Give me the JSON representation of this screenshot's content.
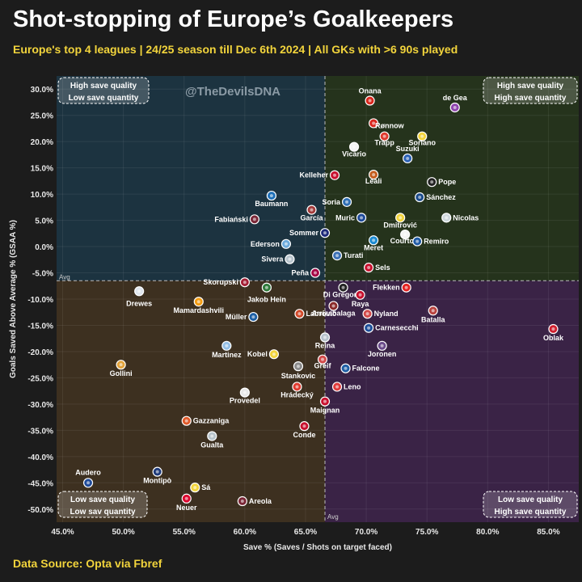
{
  "title": "Shot-stopping of Europe’s Goalkeepers",
  "subtitle": "Europe's top 4 leagues | 24/25 season till Dec 6th 2024 | All GKs with >6 90s played",
  "source": "Data Source: Opta via Fbref",
  "watermark": "@TheDevilsDNA",
  "colors": {
    "background": "#1c1c1c",
    "q_top_left": "#1c3340",
    "q_top_right": "#25331c",
    "q_bottom_left": "#3d3020",
    "q_bottom_right": "#3a2346",
    "accent_yellow": "#f2d43c"
  },
  "chart_data": {
    "type": "scatter",
    "xlabel": "Save % (Saves / Shots on target faced)",
    "ylabel": "Goals Saved Above Average % (GSAA %)",
    "xlim": [
      44.5,
      87.5
    ],
    "ylim": [
      -52.5,
      32.5
    ],
    "x_ticks": [
      "45.0%",
      "50.0%",
      "55.0%",
      "60.0%",
      "65.0%",
      "70.0%",
      "75.0%",
      "80.0%",
      "85.0%"
    ],
    "y_ticks": [
      "30.0%",
      "25.0%",
      "20.0%",
      "15.0%",
      "10.0%",
      "5.0%",
      "0.0%",
      "-5.0%",
      "-10.0%",
      "-15.0%",
      "-20.0%",
      "-25.0%",
      "-30.0%",
      "-35.0%",
      "-40.0%",
      "-45.0%",
      "-50.0%"
    ],
    "x_tick_values": [
      45,
      50,
      55,
      60,
      65,
      70,
      75,
      80,
      85
    ],
    "y_tick_values": [
      30,
      25,
      20,
      15,
      10,
      5,
      0,
      -5,
      -10,
      -15,
      -20,
      -25,
      -30,
      -35,
      -40,
      -45,
      -50
    ],
    "avg_x": 66.6,
    "avg_y": -6.5,
    "avg_label": "Avg",
    "grid": true,
    "quadrants": {
      "top_left": [
        "High save quality",
        "Low save quantity"
      ],
      "top_right": [
        "High save quality",
        "High save quantity"
      ],
      "bottom_left": [
        "Low save quality",
        "Low sav quantity"
      ],
      "bottom_right": [
        "Low save quality",
        "High save quantity"
      ]
    },
    "points": [
      {
        "name": "Onana",
        "x": 70.3,
        "y": 27.8,
        "color": "#d9261c",
        "lx": 0,
        "ly": -9,
        "a": "middle"
      },
      {
        "name": "de Gea",
        "x": 77.3,
        "y": 26.5,
        "color": "#8e44ad",
        "lx": 0,
        "ly": -9,
        "a": "middle"
      },
      {
        "name": "Rønnow",
        "x": 70.6,
        "y": 23.5,
        "color": "#d9261c",
        "lx": 2,
        "ly": 6,
        "a": "start"
      },
      {
        "name": "Trapp",
        "x": 71.5,
        "y": 21,
        "color": "#e03a2e",
        "lx": 0,
        "ly": 11,
        "a": "middle"
      },
      {
        "name": "Soriano",
        "x": 74.6,
        "y": 21,
        "color": "#f2d43c",
        "lx": 0,
        "ly": 11,
        "a": "middle"
      },
      {
        "name": "Vicario",
        "x": 69,
        "y": 19,
        "color": "#f4f4f4",
        "lx": 0,
        "ly": 12,
        "a": "middle"
      },
      {
        "name": "Suzuki",
        "x": 73.4,
        "y": 16.8,
        "color": "#2c62b5",
        "lx": 0,
        "ly": -9,
        "a": "middle"
      },
      {
        "name": "Kelleher",
        "x": 67.4,
        "y": 13.6,
        "color": "#c8102e",
        "lx": -8,
        "ly": 3,
        "a": "end"
      },
      {
        "name": "Leali",
        "x": 70.6,
        "y": 13.7,
        "color": "#c45c1c",
        "lx": 0,
        "ly": 11,
        "a": "middle"
      },
      {
        "name": "Pope",
        "x": 75.4,
        "y": 12.3,
        "color": "#222222",
        "lx": 8,
        "ly": 3,
        "a": "start"
      },
      {
        "name": "Sánchez",
        "x": 74.4,
        "y": 9.4,
        "color": "#1a4a8a",
        "lx": 8,
        "ly": 3,
        "a": "start"
      },
      {
        "name": "Baumann",
        "x": 62.2,
        "y": 9.7,
        "color": "#1d6fb8",
        "lx": 0,
        "ly": 13,
        "a": "middle"
      },
      {
        "name": "Soria",
        "x": 68.4,
        "y": 8.5,
        "color": "#2f6fb5",
        "lx": -8,
        "ly": 3,
        "a": "end"
      },
      {
        "name": "Muric",
        "x": 69.6,
        "y": 5.5,
        "color": "#1e4a9a",
        "lx": -8,
        "ly": 3,
        "a": "end"
      },
      {
        "name": "Fabiański",
        "x": 60.8,
        "y": 5.2,
        "color": "#7a2636",
        "lx": -8,
        "ly": 3,
        "a": "end"
      },
      {
        "name": "García",
        "x": 65.5,
        "y": 7,
        "color": "#a33b3b",
        "lx": 0,
        "ly": 13,
        "a": "middle"
      },
      {
        "name": "Dmitrović",
        "x": 72.8,
        "y": 5.5,
        "color": "#f2d43c",
        "lx": 0,
        "ly": 12,
        "a": "middle"
      },
      {
        "name": "Nicolas",
        "x": 76.6,
        "y": 5.5,
        "color": "#cfd8de",
        "lx": 8,
        "ly": 3,
        "a": "start"
      },
      {
        "name": "Sommer",
        "x": 66.6,
        "y": 2.6,
        "color": "#1e2a7a",
        "lx": -8,
        "ly": 3,
        "a": "end"
      },
      {
        "name": "Courtois",
        "x": 73.2,
        "y": 2.3,
        "color": "#f4f4f4",
        "lx": 0,
        "ly": 11,
        "a": "middle"
      },
      {
        "name": "Remiro",
        "x": 74.2,
        "y": 1,
        "color": "#1f5aa5",
        "lx": 8,
        "ly": 3,
        "a": "start"
      },
      {
        "name": "Ederson",
        "x": 63.4,
        "y": 0.5,
        "color": "#6cabdd",
        "lx": -8,
        "ly": 3,
        "a": "end"
      },
      {
        "name": "Meret",
        "x": 70.6,
        "y": 1.2,
        "color": "#1b8ad1",
        "lx": 0,
        "ly": 12,
        "a": "middle"
      },
      {
        "name": "Turati",
        "x": 67.6,
        "y": -1.7,
        "color": "#3a6fb5",
        "lx": 8,
        "ly": 3,
        "a": "start"
      },
      {
        "name": "Sivera",
        "x": 63.7,
        "y": -2.4,
        "color": "#b8c4cc",
        "lx": -8,
        "ly": 3,
        "a": "end"
      },
      {
        "name": "Peña",
        "x": 65.8,
        "y": -5,
        "color": "#a50044",
        "lx": -8,
        "ly": 3,
        "a": "end"
      },
      {
        "name": "Sels",
        "x": 70.2,
        "y": -4,
        "color": "#c8102e",
        "lx": 8,
        "ly": 3,
        "a": "start"
      },
      {
        "name": "Skorupski",
        "x": 60,
        "y": -6.8,
        "color": "#a41e34",
        "lx": -8,
        "ly": 3,
        "a": "end"
      },
      {
        "name": "Di Gregorio",
        "x": 68.1,
        "y": -7.8,
        "color": "#222222",
        "lx": 0,
        "ly": 12,
        "a": "middle"
      },
      {
        "name": "Flekken",
        "x": 73.3,
        "y": -7.8,
        "color": "#e32221",
        "lx": -8,
        "ly": 3,
        "a": "end"
      },
      {
        "name": "Drewes",
        "x": 51.3,
        "y": -8.5,
        "color": "#dfe6ee",
        "lx": 0,
        "ly": 18,
        "a": "middle"
      },
      {
        "name": "Jakob Hein",
        "x": 61.8,
        "y": -7.8,
        "color": "#2f7a3a",
        "lx": 0,
        "ly": 18,
        "a": "middle"
      },
      {
        "name": "Raya",
        "x": 69.5,
        "y": -9.2,
        "color": "#c8102e",
        "lx": 0,
        "ly": 14,
        "a": "middle"
      },
      {
        "name": "Mamardashvili",
        "x": 56.2,
        "y": -10.5,
        "color": "#f39c12",
        "lx": 0,
        "ly": 14,
        "a": "middle"
      },
      {
        "name": "Batalla",
        "x": 75.5,
        "y": -12.2,
        "color": "#b8433f",
        "lx": 0,
        "ly": 14,
        "a": "middle"
      },
      {
        "name": "Labrović",
        "x": 64.5,
        "y": -12.8,
        "color": "#d24a2a",
        "lx": 8,
        "ly": 3,
        "a": "start"
      },
      {
        "name": "Nyland",
        "x": 70.1,
        "y": -12.8,
        "color": "#d24a4a",
        "lx": 8,
        "ly": 3,
        "a": "start"
      },
      {
        "name": "Müller",
        "x": 60.7,
        "y": -13.4,
        "color": "#1d5fa5",
        "lx": -8,
        "ly": 3,
        "a": "end"
      },
      {
        "name": "Arrizabalaga",
        "x": 67.3,
        "y": -11.3,
        "color": "#8a2a2a",
        "lx": 0,
        "ly": 12,
        "a": "middle"
      },
      {
        "name": "Carnesecchi",
        "x": 70.2,
        "y": -15.5,
        "color": "#1d4f9a",
        "lx": 8,
        "ly": 3,
        "a": "start"
      },
      {
        "name": "Oblak",
        "x": 85.4,
        "y": -15.7,
        "color": "#cf1f2e",
        "lx": 0,
        "ly": 14,
        "a": "middle"
      },
      {
        "name": "Martinez",
        "x": 58.5,
        "y": -18.9,
        "color": "#95bfe5",
        "lx": 0,
        "ly": 14,
        "a": "middle"
      },
      {
        "name": "Reina",
        "x": 66.6,
        "y": -17.3,
        "color": "#b8c4cc",
        "lx": 0,
        "ly": 13,
        "a": "middle"
      },
      {
        "name": "Kobel",
        "x": 62.4,
        "y": -20.5,
        "color": "#f2d43c",
        "lx": -8,
        "ly": 3,
        "a": "end"
      },
      {
        "name": "Joronen",
        "x": 71.3,
        "y": -18.9,
        "color": "#6a4a8a",
        "lx": 0,
        "ly": 13,
        "a": "middle"
      },
      {
        "name": "Greif",
        "x": 66.4,
        "y": -21.5,
        "color": "#d24a4a",
        "lx": 0,
        "ly": 11,
        "a": "middle"
      },
      {
        "name": "Gollini",
        "x": 49.8,
        "y": -22.5,
        "color": "#e2a23a",
        "lx": 0,
        "ly": 14,
        "a": "middle"
      },
      {
        "name": "Falcone",
        "x": 68.3,
        "y": -23.2,
        "color": "#1e5fa5",
        "lx": 8,
        "ly": 3,
        "a": "start"
      },
      {
        "name": "Stankovic",
        "x": 64.4,
        "y": -22.8,
        "color": "#8a8a8a",
        "lx": 0,
        "ly": 15,
        "a": "middle"
      },
      {
        "name": "Leno",
        "x": 67.6,
        "y": -26.7,
        "color": "#e03a3a",
        "lx": 8,
        "ly": 3,
        "a": "start"
      },
      {
        "name": "Provedel",
        "x": 60,
        "y": -27.8,
        "color": "#e8e8e8",
        "lx": 0,
        "ly": 13,
        "a": "middle"
      },
      {
        "name": "Hrádecký",
        "x": 64.3,
        "y": -26.7,
        "color": "#e03a2e",
        "lx": 0,
        "ly": 13,
        "a": "middle"
      },
      {
        "name": "Maignan",
        "x": 66.6,
        "y": -29.5,
        "color": "#c8102e",
        "lx": 0,
        "ly": 14,
        "a": "middle"
      },
      {
        "name": "Gazzaniga",
        "x": 55.2,
        "y": -33.2,
        "color": "#e05a2a",
        "lx": 8,
        "ly": 3,
        "a": "start"
      },
      {
        "name": "Conde",
        "x": 64.9,
        "y": -34.2,
        "color": "#c8102e",
        "lx": 0,
        "ly": 14,
        "a": "middle"
      },
      {
        "name": "Gualta",
        "x": 57.3,
        "y": -36.1,
        "color": "#b8c4cc",
        "lx": 0,
        "ly": 14,
        "a": "middle"
      },
      {
        "name": "Audero",
        "x": 47.1,
        "y": -45,
        "color": "#1e4a9a",
        "lx": 0,
        "ly": -10,
        "a": "middle"
      },
      {
        "name": "Montipò",
        "x": 52.8,
        "y": -42.9,
        "color": "#1e3a7a",
        "lx": 0,
        "ly": 14,
        "a": "middle"
      },
      {
        "name": "Sá",
        "x": 55.9,
        "y": -45.9,
        "color": "#f2d43c",
        "lx": 8,
        "ly": 3,
        "a": "start"
      },
      {
        "name": "Neuer",
        "x": 55.2,
        "y": -48,
        "color": "#dc052d",
        "lx": 0,
        "ly": 14,
        "a": "middle"
      },
      {
        "name": "Areola",
        "x": 59.8,
        "y": -48.5,
        "color": "#7a2636",
        "lx": 8,
        "ly": 3,
        "a": "start"
      }
    ]
  }
}
